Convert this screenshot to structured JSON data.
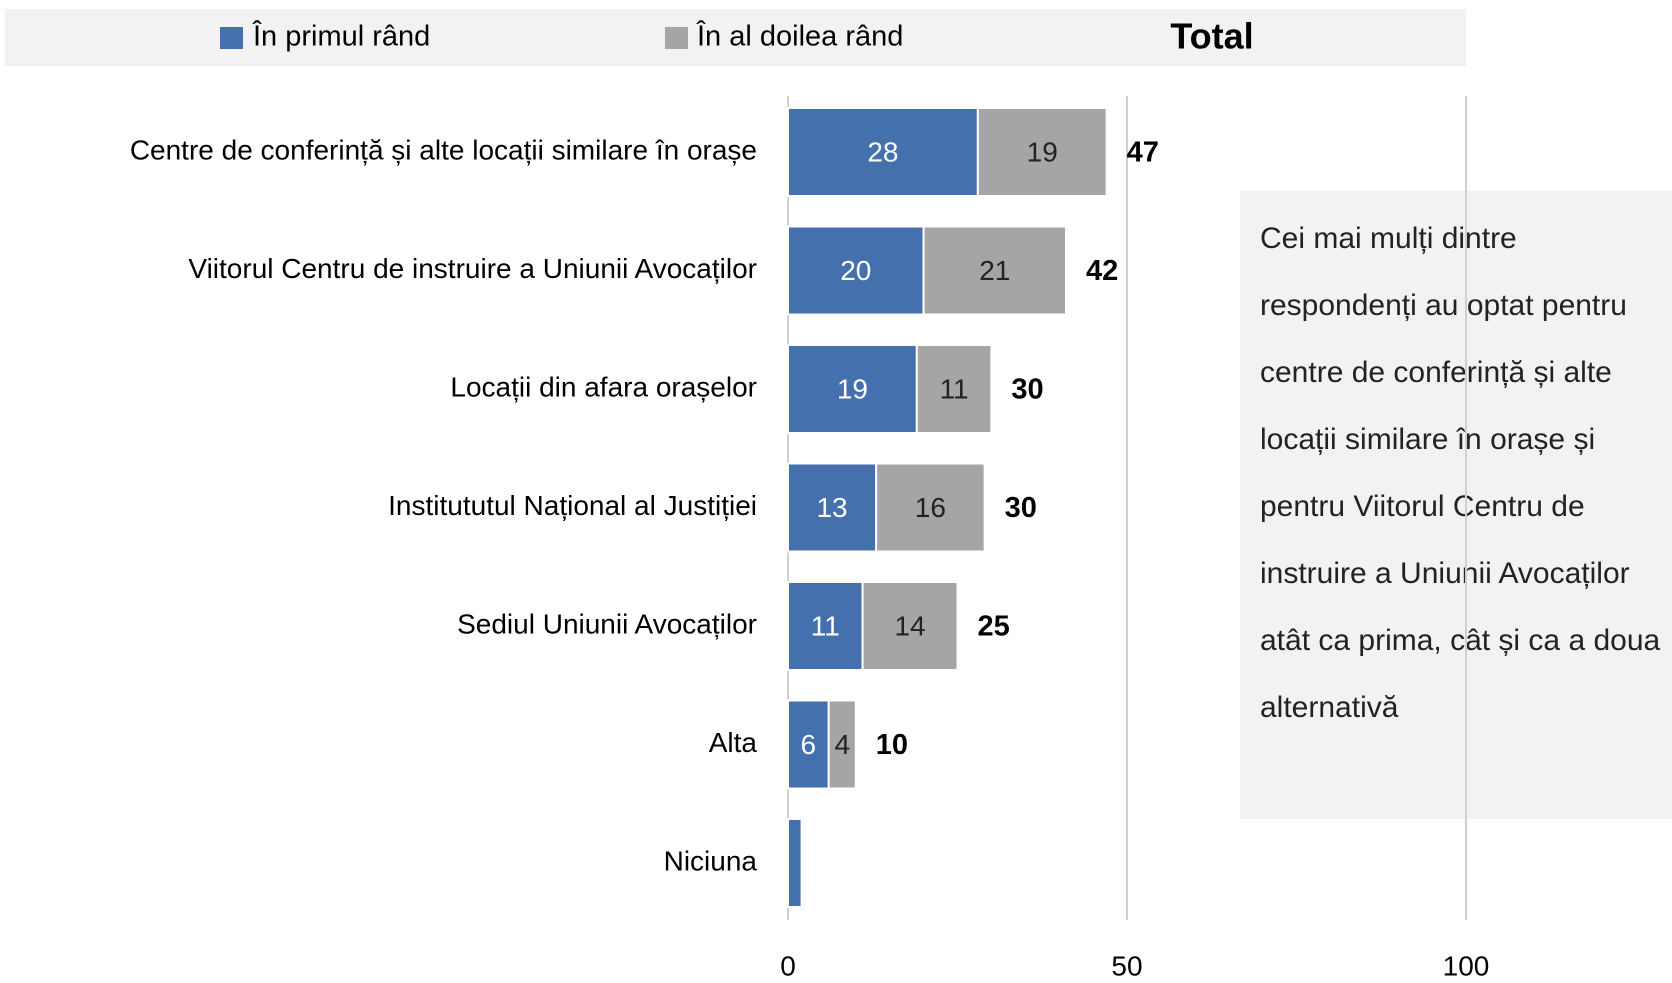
{
  "chart_data": {
    "type": "stacked-bar-horizontal",
    "categories": [
      "Centre de conferință și alte locații similare în orașe",
      "Viitorul Centru de instruire a Uniunii  Avocaților",
      "Locații din afara orașelor",
      "Institututul  Național al Justiției",
      "Sediul Uniunii Avocaților",
      "Alta",
      "Niciuna"
    ],
    "series": [
      {
        "name": "În primul rând",
        "color": "#4470ad",
        "values": [
          28,
          20,
          19,
          13,
          11,
          6,
          2
        ],
        "value_labels": [
          "28",
          "20",
          "19",
          "13",
          "11",
          "6",
          null
        ]
      },
      {
        "name": "În al doilea rând",
        "color": "#a5a5a5",
        "values": [
          19,
          21,
          11,
          16,
          14,
          4,
          null
        ]
      }
    ],
    "totals": {
      "name": "Total",
      "values": [
        47,
        42,
        30,
        30,
        25,
        10,
        null
      ]
    },
    "xlim": [
      0,
      100
    ],
    "xticks": [
      0,
      50,
      100
    ],
    "grid": true,
    "annotation": "Cei mai mulți dintre respondenți au optat pentru centre de conferință și alte locații similare în orașe și pentru Viitorul Centru de instruire a Uniunii Avocaților atât ca prima, cât și ca a doua alternativă"
  }
}
